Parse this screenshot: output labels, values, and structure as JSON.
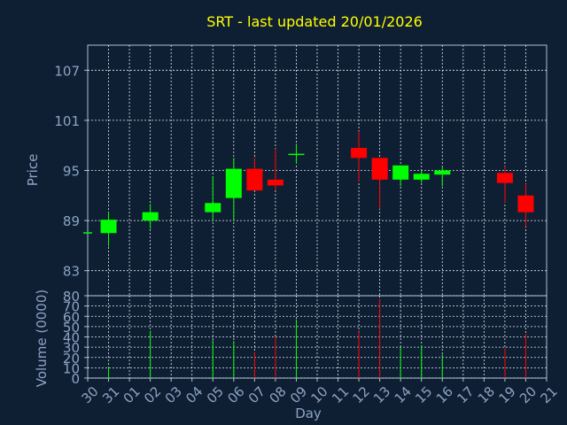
{
  "chart_data": [
    {
      "type": "candlestick",
      "title": "SRT - last updated 20/01/2026",
      "ylabel": "Price",
      "ylim": [
        80,
        110
      ],
      "yticks": [
        "83",
        "89",
        "95",
        "101",
        "107"
      ],
      "grid": true,
      "categories": [
        "30",
        "31",
        "01",
        "02",
        "03",
        "04",
        "05",
        "06",
        "07",
        "08",
        "09",
        "10",
        "11",
        "12",
        "13",
        "14",
        "15",
        "16",
        "17",
        "18",
        "19",
        "20",
        "21"
      ],
      "candles": [
        {
          "x": "30",
          "open": 87.6,
          "high": 87.6,
          "low": 87.6,
          "close": 87.6
        },
        {
          "x": "31",
          "open": 87.5,
          "high": 90.0,
          "low": 85.9,
          "close": 89.1
        },
        {
          "x": "02",
          "open": 89.0,
          "high": 91.0,
          "low": 88.0,
          "close": 90.0
        },
        {
          "x": "05",
          "open": 90.0,
          "high": 94.3,
          "low": 88.9,
          "close": 91.1
        },
        {
          "x": "06",
          "open": 91.7,
          "high": 96.5,
          "low": 89.0,
          "close": 95.2
        },
        {
          "x": "07",
          "open": 95.2,
          "high": 96.5,
          "low": 92.6,
          "close": 92.6
        },
        {
          "x": "08",
          "open": 93.9,
          "high": 97.6,
          "low": 92.6,
          "close": 93.2
        },
        {
          "x": "09",
          "open": 97.0,
          "high": 98.2,
          "low": 95.8,
          "close": 97.0
        },
        {
          "x": "12",
          "open": 97.7,
          "high": 99.7,
          "low": 93.7,
          "close": 96.5
        },
        {
          "x": "13",
          "open": 96.5,
          "high": 96.5,
          "low": 90.4,
          "close": 93.9
        },
        {
          "x": "14",
          "open": 93.9,
          "high": 95.6,
          "low": 93.1,
          "close": 95.6
        },
        {
          "x": "15",
          "open": 93.9,
          "high": 95.0,
          "low": 93.5,
          "close": 94.6
        },
        {
          "x": "16",
          "open": 94.5,
          "high": 95.5,
          "low": 93.1,
          "close": 95.0
        },
        {
          "x": "19",
          "open": 94.7,
          "high": 95.5,
          "low": 91.1,
          "close": 93.5
        },
        {
          "x": "20",
          "open": 92.0,
          "high": 93.4,
          "low": 88.3,
          "close": 90.0
        }
      ]
    },
    {
      "type": "bar",
      "ylabel": "Volume (0000)",
      "xlabel": "Day",
      "ylim": [
        0,
        80
      ],
      "yticks": [
        "0",
        "10",
        "20",
        "30",
        "40",
        "50",
        "60",
        "70",
        "80"
      ],
      "grid": true,
      "categories": [
        "30",
        "31",
        "01",
        "02",
        "03",
        "04",
        "05",
        "06",
        "07",
        "08",
        "09",
        "10",
        "11",
        "12",
        "13",
        "14",
        "15",
        "16",
        "17",
        "18",
        "19",
        "20",
        "21"
      ],
      "values": [
        0,
        11,
        0,
        46,
        0,
        0,
        37,
        36,
        25,
        40,
        57,
        0,
        0,
        45,
        77,
        30,
        32,
        23,
        0,
        0,
        29,
        43,
        0
      ],
      "up_color": "#00ff00",
      "down_color": "#ff0000"
    }
  ]
}
